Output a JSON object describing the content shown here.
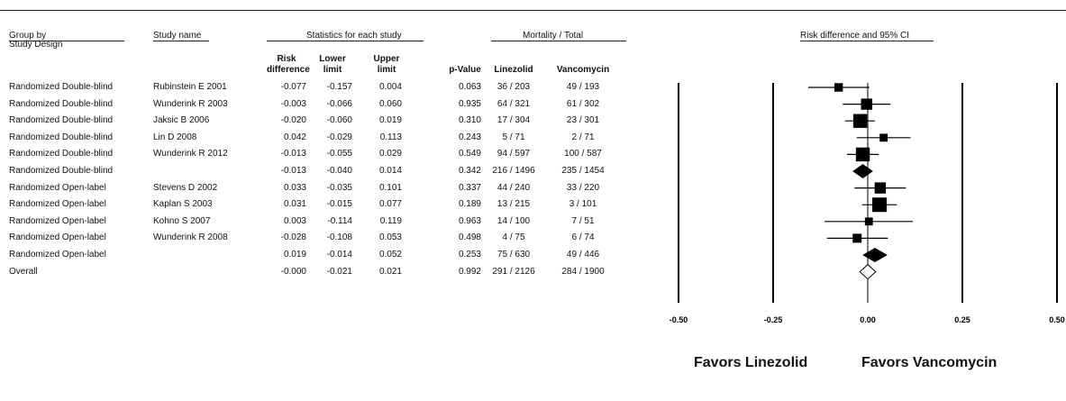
{
  "headers": {
    "group_by": "Group by",
    "study_design": "Study Design",
    "study_name": "Study name",
    "stats_group": "Statistics for each study",
    "mortality_group": "Mortality / Total",
    "plot_title": "Risk difference and 95% CI",
    "risk_difference": "Risk difference",
    "lower_limit": "Lower limit",
    "upper_limit": "Upper limit",
    "p_value": "p-Value",
    "linezolid": "Linezolid",
    "vancomycin": "Vancomycin"
  },
  "rows": [
    {
      "group": "Randomized Double-blind",
      "study": "Rubinstein E 2001",
      "rd": "-0.077",
      "lower": "-0.157",
      "upper": "0.004",
      "p": "0.063",
      "lin": "36 / 203",
      "van": "49 / 193"
    },
    {
      "group": "Randomized Double-blind",
      "study": "Wunderink R 2003",
      "rd": "-0.003",
      "lower": "-0.066",
      "upper": "0.060",
      "p": "0.935",
      "lin": "64 / 321",
      "van": "61 / 302"
    },
    {
      "group": "Randomized Double-blind",
      "study": "Jaksic B 2006",
      "rd": "-0.020",
      "lower": "-0.060",
      "upper": "0.019",
      "p": "0.310",
      "lin": "17 / 304",
      "van": "23 / 301"
    },
    {
      "group": "Randomized Double-blind",
      "study": "Lin D 2008",
      "rd": "0.042",
      "lower": "-0.029",
      "upper": "0.113",
      "p": "0.243",
      "lin": "5 / 71",
      "van": "2 / 71"
    },
    {
      "group": "Randomized Double-blind",
      "study": "Wunderink R 2012",
      "rd": "-0.013",
      "lower": "-0.055",
      "upper": "0.029",
      "p": "0.549",
      "lin": "94 / 597",
      "van": "100 / 587"
    },
    {
      "group": "Randomized Double-blind",
      "study": "",
      "rd": "-0.013",
      "lower": "-0.040",
      "upper": "0.014",
      "p": "0.342",
      "lin": "216 / 1496",
      "van": "235 / 1454"
    },
    {
      "group": "Randomized Open-label",
      "study": "Stevens D 2002",
      "rd": "0.033",
      "lower": "-0.035",
      "upper": "0.101",
      "p": "0.337",
      "lin": "44 / 240",
      "van": "33 / 220"
    },
    {
      "group": "Randomized Open-label",
      "study": "Kaplan S 2003",
      "rd": "0.031",
      "lower": "-0.015",
      "upper": "0.077",
      "p": "0.189",
      "lin": "13 / 215",
      "van": "3 / 101"
    },
    {
      "group": "Randomized Open-label",
      "study": "Kohno S 2007",
      "rd": "0.003",
      "lower": "-0.114",
      "upper": "0.119",
      "p": "0.963",
      "lin": "14 / 100",
      "van": "7 / 51"
    },
    {
      "group": "Randomized Open-label",
      "study": "Wunderink R 2008",
      "rd": "-0.028",
      "lower": "-0.108",
      "upper": "0.053",
      "p": "0.498",
      "lin": "4 / 75",
      "van": "6 / 74"
    },
    {
      "group": "Randomized Open-label",
      "study": "",
      "rd": "0.019",
      "lower": "-0.014",
      "upper": "0.052",
      "p": "0.253",
      "lin": "75 / 630",
      "van": "49 / 446"
    },
    {
      "group": "Overall",
      "study": "",
      "rd": "-0.000",
      "lower": "-0.021",
      "upper": "0.021",
      "p": "0.992",
      "lin": "291 / 2126",
      "van": "284 / 1900"
    }
  ],
  "chart_data": {
    "type": "forest",
    "title": "Risk difference and 95% CI",
    "xlim": [
      -0.5,
      0.5
    ],
    "ticks": [
      "-0.50",
      "-0.25",
      "0.00",
      "0.25",
      "0.50"
    ],
    "tick_values": [
      -0.5,
      -0.25,
      0,
      0.25,
      0.5
    ],
    "points": [
      {
        "rd": -0.077,
        "lower": -0.157,
        "upper": 0.004,
        "kind": "study",
        "weight": 0.45
      },
      {
        "rd": -0.003,
        "lower": -0.066,
        "upper": 0.06,
        "kind": "study",
        "weight": 0.7
      },
      {
        "rd": -0.02,
        "lower": -0.06,
        "upper": 0.019,
        "kind": "study",
        "weight": 0.95
      },
      {
        "rd": 0.042,
        "lower": -0.029,
        "upper": 0.113,
        "kind": "study",
        "weight": 0.4
      },
      {
        "rd": -0.013,
        "lower": -0.055,
        "upper": 0.029,
        "kind": "study",
        "weight": 0.95
      },
      {
        "rd": -0.013,
        "lower": -0.04,
        "upper": 0.014,
        "kind": "subtotal"
      },
      {
        "rd": 0.033,
        "lower": -0.035,
        "upper": 0.101,
        "kind": "study",
        "weight": 0.7
      },
      {
        "rd": 0.031,
        "lower": -0.015,
        "upper": 0.077,
        "kind": "study",
        "weight": 1.0
      },
      {
        "rd": 0.003,
        "lower": -0.114,
        "upper": 0.119,
        "kind": "study",
        "weight": 0.4
      },
      {
        "rd": -0.028,
        "lower": -0.108,
        "upper": 0.053,
        "kind": "study",
        "weight": 0.5
      },
      {
        "rd": 0.019,
        "lower": -0.014,
        "upper": 0.052,
        "kind": "subtotal"
      },
      {
        "rd": -0.0,
        "lower": -0.021,
        "upper": 0.021,
        "kind": "overall"
      }
    ],
    "favors_left": "Favors Linezolid",
    "favors_right": "Favors Vancomycin"
  }
}
